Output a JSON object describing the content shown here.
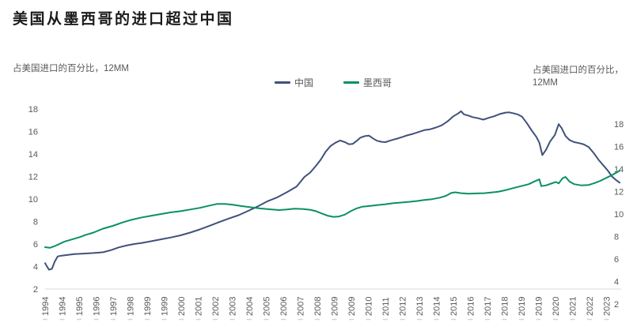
{
  "title": "美国从墨西哥的进口超过中国",
  "left_axis_label": "占美国进口的百分比，12MM",
  "right_axis_label": [
    "占美国进口的百分比，",
    "12MM"
  ],
  "legend": [
    {
      "label": "中国",
      "color": "#40517a"
    },
    {
      "label": "墨西哥",
      "color": "#0a8f67"
    }
  ],
  "colors": {
    "china_line": "#40517a",
    "mexico_line": "#0a8f67",
    "axis_text": "#595959",
    "axis_line": "#d9d9d9",
    "title_text": "#1b1b1b"
  },
  "chart_data": {
    "type": "line",
    "title": "美国从墨西哥的进口超过中国",
    "xlabel": "",
    "ylabel_left": "占美国进口的百分比，12MM",
    "ylabel_right": "占美国进口的百分比，12MM",
    "grid": false,
    "legend_position": "top-center",
    "x_tick_labels": [
      "1994",
      "1994",
      "1995",
      "1996",
      "1997",
      "1998",
      "1999",
      "1999",
      "2000",
      "2001",
      "2002",
      "2003",
      "2004",
      "2005",
      "2006",
      "2007",
      "2008",
      "2009",
      "2009",
      "2010",
      "2011",
      "2012",
      "2013",
      "2014",
      "2015",
      "2016",
      "2017",
      "2018",
      "2019",
      "2019",
      "2020",
      "2021",
      "2022",
      "2023"
    ],
    "left_axis": {
      "ticks": [
        18,
        16,
        14,
        12,
        10,
        8,
        6,
        4,
        2
      ],
      "range": [
        2,
        18
      ]
    },
    "right_axis": {
      "ticks": [
        18,
        16,
        14,
        12,
        10,
        8,
        6,
        4,
        2
      ],
      "range": [
        2,
        18
      ],
      "offset_vs_left_units": 1.25
    },
    "x_range_years": [
      1994,
      2023.75
    ],
    "series": [
      {
        "name": "中国",
        "axis": "left",
        "color": "#40517a",
        "points": [
          [
            1994.0,
            4.3
          ],
          [
            1994.08,
            4.05
          ],
          [
            1994.2,
            3.72
          ],
          [
            1994.35,
            3.8
          ],
          [
            1994.5,
            4.45
          ],
          [
            1994.65,
            4.9
          ],
          [
            1994.85,
            4.97
          ],
          [
            1995.1,
            5.02
          ],
          [
            1995.5,
            5.1
          ],
          [
            1996.0,
            5.15
          ],
          [
            1996.5,
            5.2
          ],
          [
            1997.0,
            5.27
          ],
          [
            1997.4,
            5.45
          ],
          [
            1997.8,
            5.7
          ],
          [
            1998.2,
            5.87
          ],
          [
            1998.6,
            6.0
          ],
          [
            1999.0,
            6.1
          ],
          [
            1999.5,
            6.25
          ],
          [
            2000.0,
            6.42
          ],
          [
            2000.5,
            6.58
          ],
          [
            2001.0,
            6.77
          ],
          [
            2001.5,
            7.02
          ],
          [
            2002.0,
            7.3
          ],
          [
            2002.5,
            7.62
          ],
          [
            2003.0,
            7.95
          ],
          [
            2003.5,
            8.27
          ],
          [
            2004.0,
            8.56
          ],
          [
            2004.5,
            8.95
          ],
          [
            2005.0,
            9.35
          ],
          [
            2005.5,
            9.8
          ],
          [
            2006.0,
            10.15
          ],
          [
            2006.5,
            10.6
          ],
          [
            2007.0,
            11.1
          ],
          [
            2007.4,
            11.95
          ],
          [
            2007.7,
            12.35
          ],
          [
            2008.0,
            12.95
          ],
          [
            2008.25,
            13.5
          ],
          [
            2008.5,
            14.2
          ],
          [
            2008.75,
            14.7
          ],
          [
            2009.0,
            15.0
          ],
          [
            2009.25,
            15.2
          ],
          [
            2009.5,
            15.05
          ],
          [
            2009.7,
            14.87
          ],
          [
            2009.9,
            14.9
          ],
          [
            2010.1,
            15.15
          ],
          [
            2010.3,
            15.45
          ],
          [
            2010.55,
            15.6
          ],
          [
            2010.75,
            15.63
          ],
          [
            2010.95,
            15.38
          ],
          [
            2011.15,
            15.18
          ],
          [
            2011.4,
            15.08
          ],
          [
            2011.6,
            15.05
          ],
          [
            2011.8,
            15.17
          ],
          [
            2012.0,
            15.28
          ],
          [
            2012.2,
            15.37
          ],
          [
            2012.45,
            15.5
          ],
          [
            2012.7,
            15.65
          ],
          [
            2013.0,
            15.78
          ],
          [
            2013.3,
            15.95
          ],
          [
            2013.6,
            16.12
          ],
          [
            2013.9,
            16.2
          ],
          [
            2014.2,
            16.35
          ],
          [
            2014.5,
            16.55
          ],
          [
            2014.8,
            16.9
          ],
          [
            2015.1,
            17.35
          ],
          [
            2015.35,
            17.6
          ],
          [
            2015.5,
            17.8
          ],
          [
            2015.65,
            17.52
          ],
          [
            2015.9,
            17.4
          ],
          [
            2016.1,
            17.28
          ],
          [
            2016.4,
            17.17
          ],
          [
            2016.65,
            17.05
          ],
          [
            2016.9,
            17.2
          ],
          [
            2017.2,
            17.35
          ],
          [
            2017.5,
            17.55
          ],
          [
            2017.8,
            17.68
          ],
          [
            2018.0,
            17.7
          ],
          [
            2018.25,
            17.6
          ],
          [
            2018.45,
            17.5
          ],
          [
            2018.65,
            17.32
          ],
          [
            2018.9,
            16.75
          ],
          [
            2019.15,
            16.1
          ],
          [
            2019.4,
            15.5
          ],
          [
            2019.55,
            15.0
          ],
          [
            2019.7,
            13.9
          ],
          [
            2019.9,
            14.4
          ],
          [
            2020.1,
            15.1
          ],
          [
            2020.35,
            15.7
          ],
          [
            2020.55,
            16.65
          ],
          [
            2020.7,
            16.3
          ],
          [
            2020.9,
            15.6
          ],
          [
            2021.1,
            15.25
          ],
          [
            2021.35,
            15.05
          ],
          [
            2021.6,
            14.97
          ],
          [
            2021.85,
            14.85
          ],
          [
            2022.1,
            14.62
          ],
          [
            2022.35,
            14.1
          ],
          [
            2022.6,
            13.5
          ],
          [
            2022.85,
            13.0
          ],
          [
            2023.1,
            12.5
          ],
          [
            2023.3,
            12.0
          ],
          [
            2023.5,
            11.7
          ],
          [
            2023.7,
            11.45
          ]
        ]
      },
      {
        "name": "墨西哥",
        "axis": "right",
        "color": "#0a8f67",
        "points": [
          [
            1994.0,
            7.05
          ],
          [
            1994.25,
            7.0
          ],
          [
            1994.5,
            7.15
          ],
          [
            1994.75,
            7.35
          ],
          [
            1995.0,
            7.55
          ],
          [
            1995.4,
            7.75
          ],
          [
            1995.8,
            7.95
          ],
          [
            1996.1,
            8.15
          ],
          [
            1996.5,
            8.35
          ],
          [
            1997.0,
            8.7
          ],
          [
            1997.5,
            8.95
          ],
          [
            1998.0,
            9.25
          ],
          [
            1998.5,
            9.5
          ],
          [
            1999.0,
            9.7
          ],
          [
            1999.5,
            9.85
          ],
          [
            2000.0,
            10.0
          ],
          [
            2000.5,
            10.15
          ],
          [
            2001.0,
            10.25
          ],
          [
            2001.5,
            10.4
          ],
          [
            2002.0,
            10.55
          ],
          [
            2002.5,
            10.75
          ],
          [
            2002.9,
            10.9
          ],
          [
            2003.3,
            10.9
          ],
          [
            2003.7,
            10.82
          ],
          [
            2004.1,
            10.72
          ],
          [
            2004.6,
            10.6
          ],
          [
            2005.1,
            10.5
          ],
          [
            2005.6,
            10.42
          ],
          [
            2006.1,
            10.35
          ],
          [
            2006.5,
            10.4
          ],
          [
            2006.9,
            10.47
          ],
          [
            2007.3,
            10.45
          ],
          [
            2007.7,
            10.38
          ],
          [
            2008.0,
            10.25
          ],
          [
            2008.3,
            10.05
          ],
          [
            2008.6,
            9.85
          ],
          [
            2008.9,
            9.75
          ],
          [
            2009.2,
            9.78
          ],
          [
            2009.5,
            9.95
          ],
          [
            2009.8,
            10.25
          ],
          [
            2010.1,
            10.5
          ],
          [
            2010.4,
            10.65
          ],
          [
            2010.8,
            10.72
          ],
          [
            2011.2,
            10.8
          ],
          [
            2011.6,
            10.87
          ],
          [
            2012.0,
            10.97
          ],
          [
            2012.4,
            11.02
          ],
          [
            2012.8,
            11.08
          ],
          [
            2013.2,
            11.15
          ],
          [
            2013.6,
            11.25
          ],
          [
            2014.0,
            11.32
          ],
          [
            2014.4,
            11.45
          ],
          [
            2014.7,
            11.6
          ],
          [
            2015.0,
            11.88
          ],
          [
            2015.2,
            11.93
          ],
          [
            2015.5,
            11.85
          ],
          [
            2015.9,
            11.8
          ],
          [
            2016.3,
            11.83
          ],
          [
            2016.7,
            11.85
          ],
          [
            2017.0,
            11.9
          ],
          [
            2017.4,
            11.97
          ],
          [
            2017.8,
            12.12
          ],
          [
            2018.2,
            12.3
          ],
          [
            2018.6,
            12.48
          ],
          [
            2019.0,
            12.65
          ],
          [
            2019.3,
            12.9
          ],
          [
            2019.55,
            13.08
          ],
          [
            2019.65,
            12.48
          ],
          [
            2019.9,
            12.55
          ],
          [
            2020.15,
            12.7
          ],
          [
            2020.4,
            12.85
          ],
          [
            2020.55,
            12.72
          ],
          [
            2020.75,
            13.18
          ],
          [
            2020.9,
            13.3
          ],
          [
            2021.1,
            12.9
          ],
          [
            2021.35,
            12.65
          ],
          [
            2021.7,
            12.55
          ],
          [
            2022.1,
            12.58
          ],
          [
            2022.4,
            12.75
          ],
          [
            2022.7,
            12.95
          ],
          [
            2023.0,
            13.2
          ],
          [
            2023.3,
            13.45
          ],
          [
            2023.5,
            13.65
          ],
          [
            2023.7,
            13.85
          ]
        ]
      }
    ]
  }
}
